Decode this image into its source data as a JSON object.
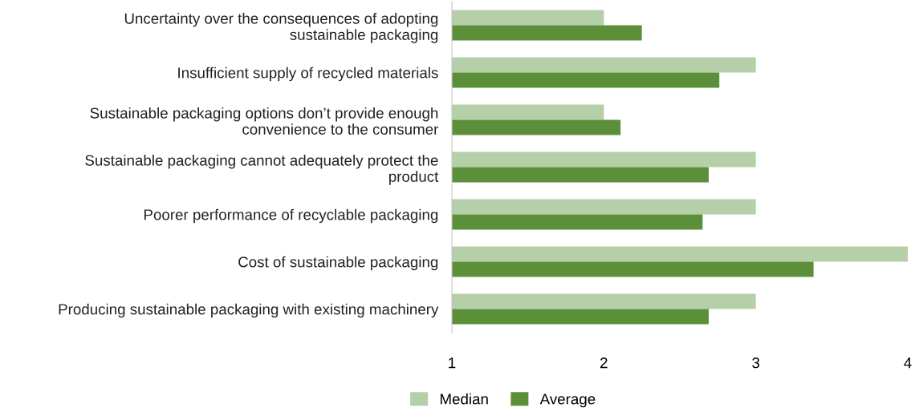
{
  "chart_data": {
    "type": "bar",
    "orientation": "horizontal",
    "categories": [
      "Uncertainty over the consequences of adopting\nsustainable packaging",
      "Insufficient supply of recycled materials",
      "Sustainable packaging options don’t provide enough\nconvenience to the consumer",
      "Sustainable packaging cannot adequately protect the\nproduct",
      "Poorer performance of recyclable packaging",
      "Cost of sustainable packaging",
      "Producing sustainable packaging with existing machinery"
    ],
    "series": [
      {
        "name": "Median",
        "color": "#b5d0a8",
        "values": [
          2,
          3,
          2,
          3,
          3,
          4,
          3
        ]
      },
      {
        "name": "Average",
        "color": "#5b8f3a",
        "values": [
          2.25,
          2.76,
          2.11,
          2.69,
          2.65,
          3.38,
          2.69
        ]
      }
    ],
    "xlim": [
      1,
      4
    ],
    "xticks": [
      1,
      2,
      3,
      4
    ],
    "grid": false,
    "legend": "bottom"
  }
}
